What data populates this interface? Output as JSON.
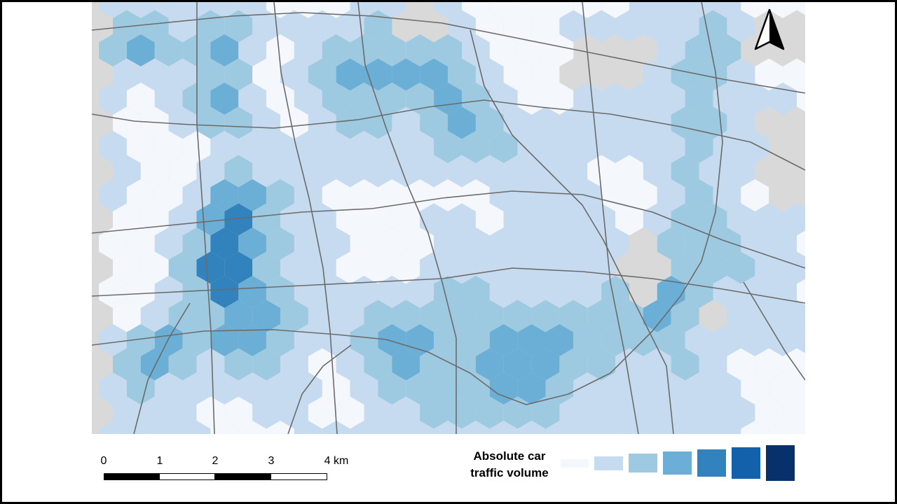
{
  "map": {
    "legend_title_line1": "Absolute car",
    "legend_title_line2": "traffic volume",
    "legend_classes": [
      "#f4f8fd",
      "#c6dbef",
      "#9ecae1",
      "#6baed6",
      "#3182bd",
      "#1361ab",
      "#08306b"
    ],
    "scale_labels": [
      "0",
      "1",
      "2",
      "3",
      "4 km"
    ],
    "north_arrow": "north-arrow-icon",
    "basemap_color": "#d9d9d9",
    "road_color": "#6b6b6b"
  }
}
